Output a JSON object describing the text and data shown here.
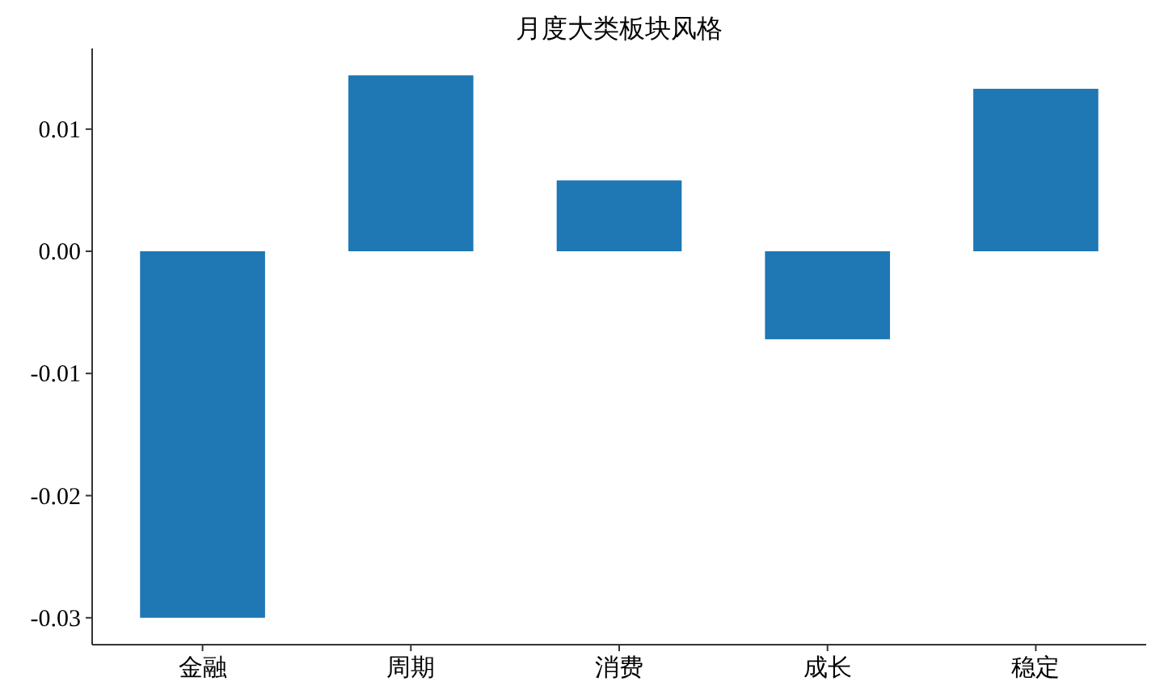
{
  "chart_data": {
    "type": "bar",
    "title": "月度大类板块风格",
    "categories": [
      "金融",
      "周期",
      "消费",
      "成长",
      "稳定"
    ],
    "values": [
      -0.03,
      0.0144,
      0.0058,
      -0.0072,
      0.0133
    ],
    "color": "#1f77b4",
    "ylim": [
      -0.0322,
      0.0166
    ],
    "yticks": [
      -0.03,
      -0.02,
      -0.01,
      {
        "value": 0,
        "label": "0.00"
      },
      0.01
    ]
  }
}
